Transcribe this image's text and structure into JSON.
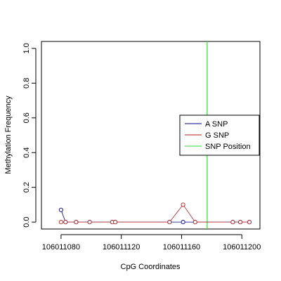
{
  "chart_data": {
    "type": "line",
    "xlabel": "CpG Coordinates",
    "ylabel": "Methylation Frequency",
    "xlim": [
      106011067,
      106011212
    ],
    "ylim": [
      -0.04,
      1.04
    ],
    "x_ticks": [
      106011080,
      106011120,
      106011160,
      106011200
    ],
    "x_tick_labels": [
      "106011080",
      "106011120",
      "106011160",
      "106011200"
    ],
    "y_ticks": [
      0.0,
      0.2,
      0.4,
      0.6,
      0.8,
      1.0
    ],
    "y_tick_labels": [
      "0.0",
      "0.2",
      "0.4",
      "0.6",
      "0.8",
      "1.0"
    ],
    "grid": false,
    "legend_position": "right",
    "series": [
      {
        "name": "A SNP",
        "color": "#00008B",
        "marker": "open-circle",
        "points": [
          [
            106011080,
            0.07
          ],
          [
            106011083,
            0.0
          ],
          [
            106011090,
            0.0
          ],
          [
            106011099,
            0.0
          ],
          [
            106011114,
            0.0
          ],
          [
            106011116,
            0.0
          ],
          [
            106011152,
            0.0
          ],
          [
            106011161,
            0.0
          ],
          [
            106011169,
            0.0
          ],
          [
            106011194,
            0.0
          ],
          [
            106011199,
            0.0
          ],
          [
            106011205,
            0.0
          ]
        ]
      },
      {
        "name": "G SNP",
        "color": "#B22222",
        "marker": "open-circle",
        "points": [
          [
            106011080,
            0.0
          ],
          [
            106011083,
            0.0
          ],
          [
            106011090,
            0.0
          ],
          [
            106011099,
            0.0
          ],
          [
            106011114,
            0.0
          ],
          [
            106011116,
            0.0
          ],
          [
            106011152,
            0.0
          ],
          [
            106011161,
            0.1
          ],
          [
            106011169,
            0.0
          ],
          [
            106011194,
            0.0
          ],
          [
            106011199,
            0.0
          ],
          [
            106011205,
            0.0
          ]
        ]
      }
    ],
    "snp_position": {
      "name": "SNP Position",
      "x": 106011177,
      "color": "#33DD33"
    }
  }
}
